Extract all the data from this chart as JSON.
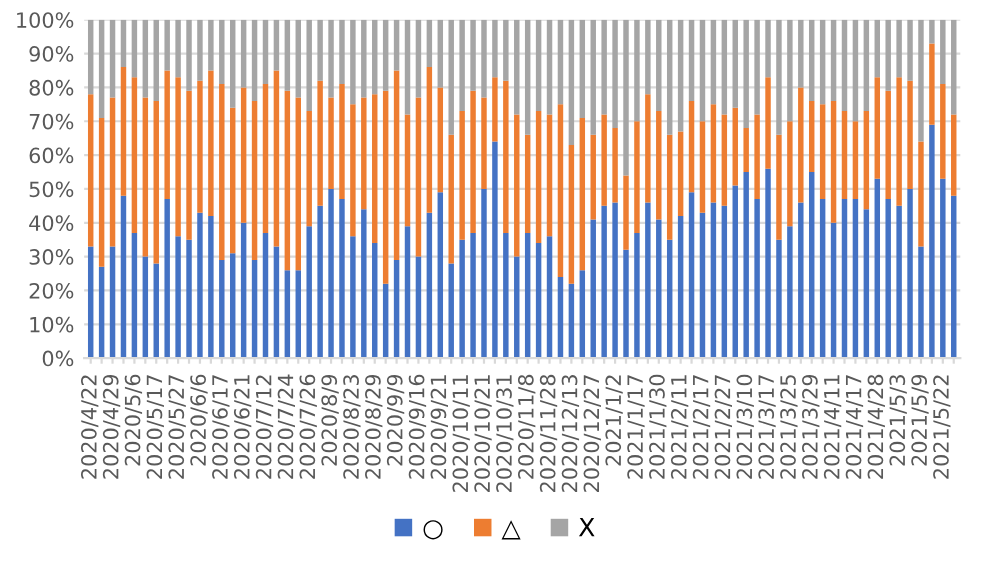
{
  "chart_data": {
    "type": "bar",
    "stacked": true,
    "legend": "bottom",
    "grid": "y",
    "categories": [
      "2020/4/22",
      null,
      "2020/4/29",
      null,
      "2020/5/6",
      null,
      "2020/5/17",
      null,
      "2020/5/27",
      null,
      "2020/6/6",
      null,
      "2020/6/17",
      null,
      "2020/6/21",
      null,
      "2020/7/12",
      null,
      "2020/7/24",
      null,
      "2020/7/26",
      null,
      "2020/8/9",
      null,
      "2020/8/23",
      null,
      "2020/8/29",
      null,
      "2020/9/9",
      null,
      "2020/9/16",
      null,
      "2020/9/21",
      null,
      "2020/10/11",
      null,
      "2020/10/21",
      null,
      "2020/10/31",
      null,
      "2020/11/8",
      null,
      "2020/11/28",
      null,
      "2020/12/13",
      null,
      "2020/12/27",
      null,
      "2021/1/2",
      null,
      "2021/1/17",
      null,
      "2021/1/30",
      null,
      "2021/2/11",
      null,
      "2021/2/17",
      null,
      "2021/2/27",
      null,
      "2021/3/10",
      null,
      "2021/3/17",
      null,
      "2021/3/25",
      null,
      "2021/3/29",
      null,
      "2021/4/11",
      null,
      "2021/4/17",
      null,
      "2021/4/28",
      null,
      "2021/5/3",
      null,
      "2021/5/9",
      null,
      "2021/5/22",
      null
    ],
    "ylim": [
      0,
      100
    ],
    "yticks": [
      {
        "value": 0,
        "label": "0%"
      },
      {
        "value": 10,
        "label": "10%"
      },
      {
        "value": 20,
        "label": "20%"
      },
      {
        "value": 30,
        "label": "30%"
      },
      {
        "value": 40,
        "label": "40%"
      },
      {
        "value": 50,
        "label": "50%"
      },
      {
        "value": 60,
        "label": "60%"
      },
      {
        "value": 70,
        "label": "70%"
      },
      {
        "value": 80,
        "label": "80%"
      },
      {
        "value": 90,
        "label": "90%"
      },
      {
        "value": 100,
        "label": "100%"
      }
    ],
    "series": [
      {
        "name": "○",
        "color": "#4472c4",
        "values": [
          33,
          27,
          33,
          48,
          37,
          30,
          28,
          47,
          36,
          35,
          43,
          42,
          29,
          31,
          40,
          29,
          37,
          33,
          26,
          26,
          39,
          45,
          50,
          47,
          36,
          44,
          34,
          22,
          29,
          39,
          30,
          43,
          49,
          28,
          35,
          37,
          50,
          64,
          37,
          30,
          37,
          34,
          36,
          24,
          22,
          26,
          41,
          45,
          46,
          32,
          37,
          46,
          41,
          35,
          42,
          49,
          43,
          46,
          45,
          51,
          55,
          47,
          56,
          35,
          39,
          46,
          55,
          47,
          40,
          47,
          47,
          44,
          53,
          47,
          45,
          50,
          33,
          69,
          53,
          48
        ]
      },
      {
        "name": "△",
        "color": "#ed7d31",
        "values": [
          45,
          44,
          44,
          38,
          46,
          47,
          48,
          38,
          47,
          44,
          39,
          43,
          52,
          43,
          40,
          47,
          44,
          52,
          53,
          51,
          34,
          37,
          27,
          34,
          39,
          33,
          44,
          57,
          56,
          33,
          47,
          43,
          31,
          38,
          38,
          42,
          27,
          19,
          45,
          42,
          29,
          39,
          36,
          51,
          41,
          45,
          25,
          27,
          22,
          22,
          33,
          32,
          32,
          31,
          25,
          27,
          27,
          29,
          27,
          23,
          13,
          25,
          27,
          31,
          31,
          34,
          21,
          28,
          36,
          26,
          23,
          29,
          30,
          32,
          38,
          32,
          31,
          24,
          28,
          24
        ]
      },
      {
        "name": "X",
        "color": "#a5a5a5",
        "values": [
          22,
          29,
          23,
          14,
          17,
          23,
          24,
          15,
          17,
          21,
          18,
          15,
          19,
          26,
          20,
          24,
          19,
          15,
          21,
          23,
          27,
          18,
          23,
          19,
          25,
          23,
          22,
          21,
          15,
          28,
          23,
          14,
          20,
          34,
          27,
          21,
          23,
          17,
          18,
          28,
          34,
          27,
          28,
          25,
          37,
          29,
          34,
          28,
          32,
          46,
          30,
          22,
          27,
          34,
          33,
          24,
          30,
          25,
          28,
          26,
          32,
          28,
          17,
          34,
          30,
          20,
          24,
          25,
          24,
          27,
          30,
          27,
          17,
          21,
          17,
          18,
          36,
          7,
          19,
          28
        ]
      }
    ]
  }
}
